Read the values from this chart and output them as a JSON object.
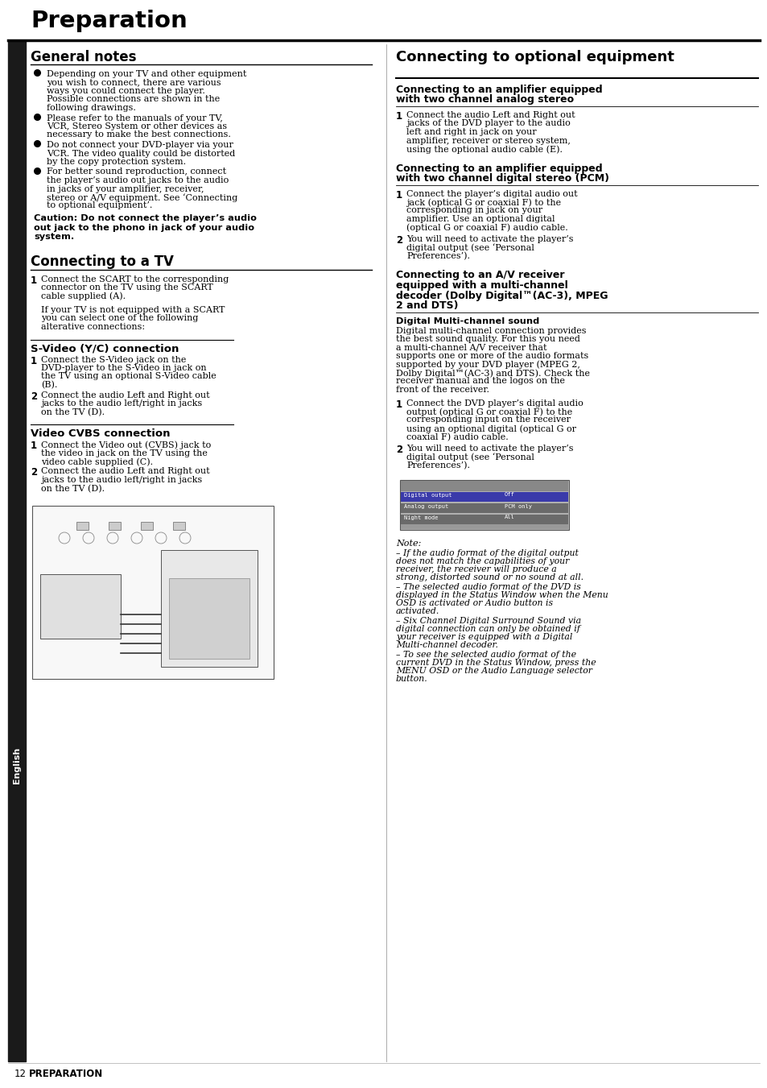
{
  "page_title": "Preparation",
  "page_num": "12",
  "page_num_label": "PREPARATION",
  "bg_color": "#ffffff",
  "text_color": "#000000",
  "sidebar_color": "#1a1a1a",
  "sidebar_text": "English",
  "left_col": {
    "section1_title": "General notes",
    "bullets": [
      "Depending on your TV and other equipment you wish to connect, there are various ways you could connect the player. Possible connections are shown in the following drawings.",
      "Please refer to the manuals of your TV, VCR, Stereo System or other devices as necessary to make the best connections.",
      "Do not connect your DVD-player via your VCR. The video quality could be distorted by the copy protection system.",
      "For better sound reproduction, connect the player’s audio out jacks to the audio in jacks of your amplifier, receiver, stereo or A/V equipment. See ‘Connecting to optional equipment’."
    ],
    "caution": "Caution:  Do not connect  the player’s audio out jack to the phono in jack of your audio system.",
    "section2_title": "Connecting to a TV",
    "tv_step1": "Connect the SCART to the corresponding connector on the TV using the SCART cable supplied (A).",
    "tv_note": "If your TV is not equipped with a SCART you can select one of the following alterative connections:",
    "svideo_title": "S-Video (Y/C) connection",
    "svideo_steps": [
      "Connect the S-Video jack on the DVD-player to the S-Video in jack on the TV using an optional S-Video cable (B).",
      "Connect the audio Left and Right out jacks to the audio left/right in jacks on the TV (D)."
    ],
    "cvbs_title": "Video CVBS connection",
    "cvbs_steps": [
      "Connect the Video out (CVBS) jack to the video in jack on the TV using the video cable supplied (C).",
      "Connect the audio Left and Right out jacks to the audio left/right in jacks on the TV (D)."
    ]
  },
  "right_col": {
    "section_title": "Connecting to optional equipment",
    "amp2ch_title": "Connecting to an amplifier equipped with two channel analog stereo",
    "amp2ch_steps": [
      "Connect the audio Left and Right out jacks of the DVD player to the audio left and right in jack on your amplifier, receiver or stereo system,  using the optional audio cable (E)."
    ],
    "amp_digital_title": "Connecting to an amplifier equipped with two channel digital stereo (PCM)",
    "amp_digital_steps": [
      "Connect the player’s digital audio out jack (optical G or coaxial F) to the corresponding in jack on your amplifier. Use an optional digital (optical G or coaxial F) audio cable.",
      "You will need to activate the player’s digital output (see ‘Personal Preferences’)."
    ],
    "multichannel_title": "Connecting to an A/V receiver equipped with a multi-channel decoder (Dolby Digital™(AC-3), MPEG 2 and DTS)",
    "digital_sub": "Digital Multi-channel sound",
    "digital_desc": "Digital multi-channel connection provides the best sound quality. For this you need a multi-channel A/V receiver that supports one or more of the audio formats supported by your DVD player (MPEG 2, Dolby Digital™(AC-3) and DTS). Check the receiver manual and the logos on the front of the receiver.",
    "multichannel_steps": [
      "Connect the DVD player’s digital audio output (optical G or coaxial F) to the corresponding input on the receiver using an optional digital (optical G or coaxial F) audio cable.",
      "You will need to activate the player’s digital output (see ‘Personal Preferences’)."
    ],
    "note_title": "Note:",
    "notes": [
      "–  If the audio format of the digital output does not match the capabilities of your receiver, the receiver will produce a strong, distorted sound or no sound at all.",
      "–  The selected audio format of the DVD is displayed in the Status Window when the Menu OSD is activated or Audio button is activated.",
      "–  Six Channel Digital Surround Sound via digital connection can only be obtained if your receiver is equipped with a Digital Multi-channel decoder.",
      "–  To see the selected audio format of the current DVD in the Status Window, press the MENU OSD or the Audio Language selector button."
    ]
  }
}
